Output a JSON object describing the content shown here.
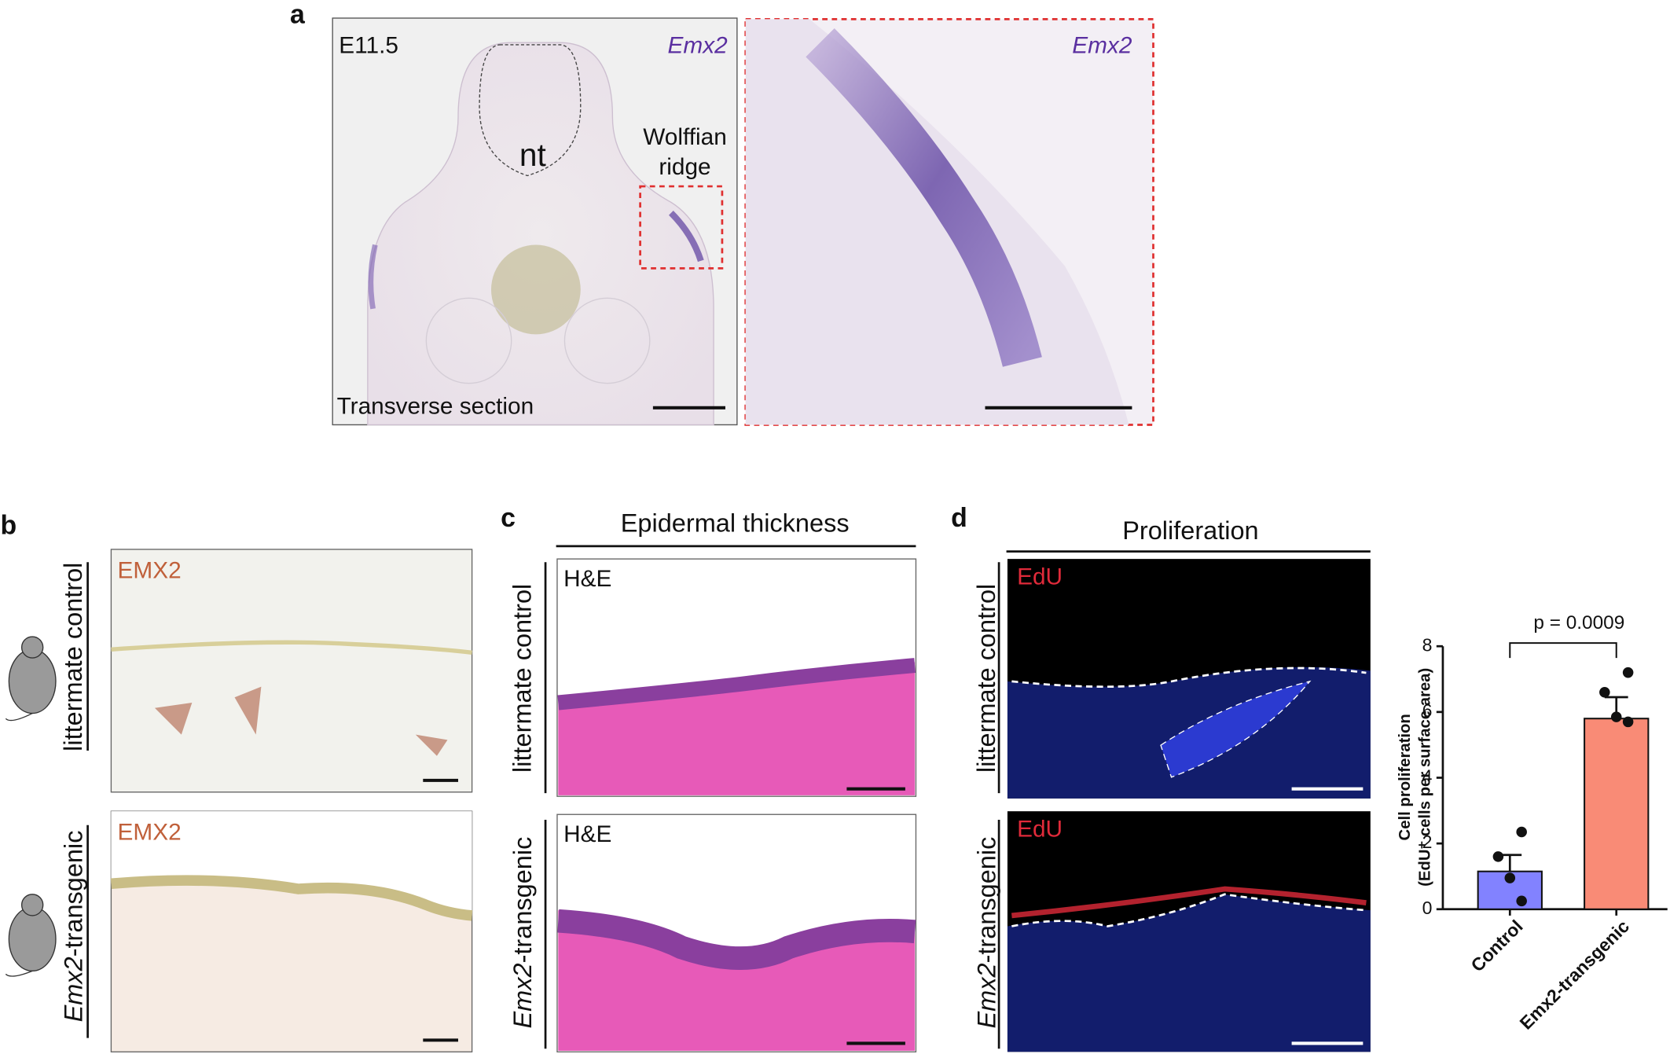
{
  "panel_a": {
    "letter": "a",
    "stage": "E11.5",
    "gene": "Emx2",
    "nt": "nt",
    "region": [
      "Wolffian",
      "ridge"
    ],
    "section": "Transverse section",
    "zoom_gene": "Emx2"
  },
  "panel_b": {
    "letter": "b",
    "rows": [
      {
        "label": "littermate control",
        "stain": "EMX2"
      },
      {
        "label": [
          "Emx2",
          "-transgenic"
        ],
        "stain": "EMX2"
      }
    ]
  },
  "panel_c": {
    "letter": "c",
    "title": "Epidermal thickness",
    "rows": [
      {
        "label": "littermate control",
        "stain": "H&E"
      },
      {
        "label": [
          "Emx2",
          "-transgenic"
        ],
        "stain": "H&E"
      }
    ]
  },
  "panel_d": {
    "letter": "d",
    "title": "Proliferation",
    "rows": [
      {
        "label": "littermate control",
        "stain": "EdU"
      },
      {
        "label": [
          "Emx2",
          "-transgenic"
        ],
        "stain": "EdU"
      }
    ]
  },
  "chart_data": {
    "type": "bar",
    "y_label": [
      "Cell proliferation",
      "(EdU⁺ cells per surface area)"
    ],
    "categories": [
      "Control",
      "Emx2-transgenic"
    ],
    "values": [
      1.15,
      5.8
    ],
    "errors": [
      0.5,
      0.65
    ],
    "points": [
      [
        2.35,
        1.6,
        0.95,
        0.25
      ],
      [
        7.2,
        6.6,
        5.85,
        5.7
      ]
    ],
    "colors": [
      "#8282ff",
      "#f98b76"
    ],
    "ylim": [
      0,
      8
    ],
    "yticks": [
      0,
      2,
      4,
      6,
      8
    ],
    "annotation": "p = 0.0009"
  }
}
